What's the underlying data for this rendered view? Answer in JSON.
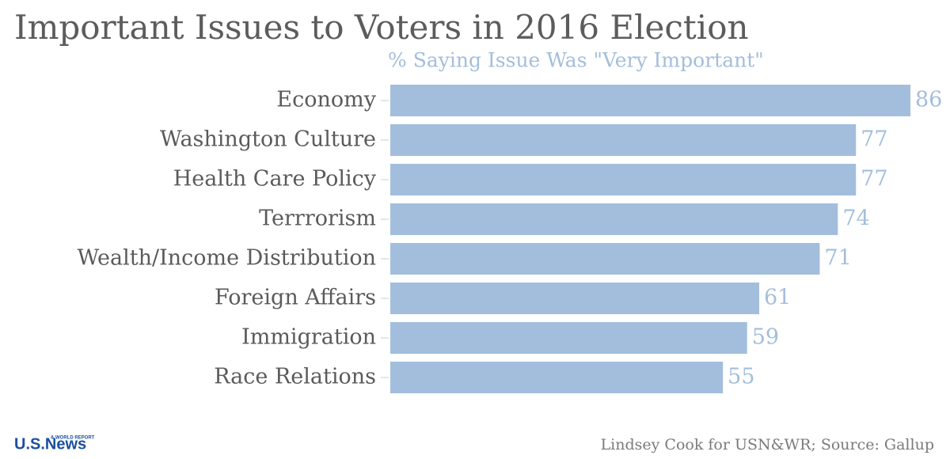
{
  "chart_data": {
    "type": "barh",
    "title": "Important Issues to Voters in 2016 Election",
    "subtitle": "% Saying Issue Was \"Very Important\"",
    "categories": [
      "Economy",
      "Washington Culture",
      "Health Care Policy",
      "Terrrorism",
      "Wealth/Income Distribution",
      "Foreign Affairs",
      "Immigration",
      "Race Relations"
    ],
    "values": [
      86,
      77,
      77,
      74,
      71,
      61,
      59,
      55
    ],
    "color": "#a3bedc",
    "source": "Lindsey Cook for USN&WR; Source: Gallup",
    "logo": "U.S.News",
    "logo_sub": "& WORLD REPORT"
  }
}
